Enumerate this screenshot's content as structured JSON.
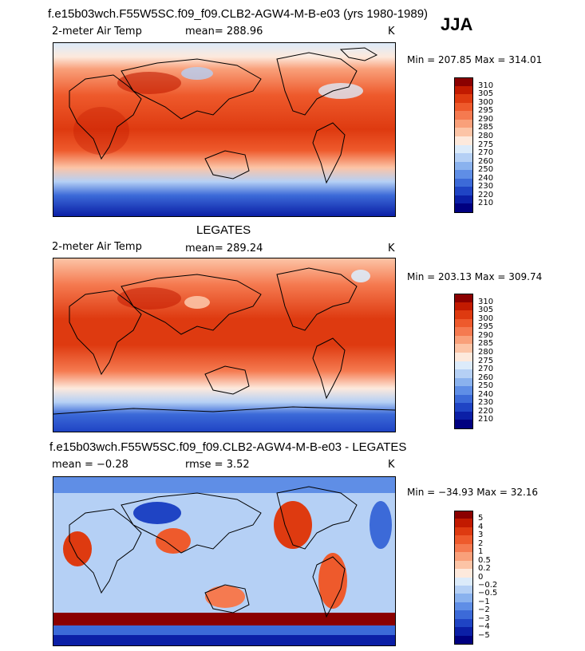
{
  "header": {
    "title": "f.e15b03wch.F55W5SC.f09_f09.CLB2-AGW4-M-B-e03 (yrs 1980-1989)",
    "season": "JJA"
  },
  "panels": [
    {
      "title": "",
      "variable": "2-meter Air Temp",
      "stats": "mean= 288.96",
      "units": "K",
      "minmax": "Min = 207.85 Max = 314.01",
      "kind": "abs"
    },
    {
      "title": "LEGATES",
      "variable": "2-meter Air Temp",
      "stats": "mean= 289.24",
      "units": "K",
      "minmax": "Min = 203.13 Max = 309.74",
      "kind": "abs"
    },
    {
      "title": "f.e15b03wch.F55W5SC.f09_f09.CLB2-AGW4-M-B-e03 - LEGATES",
      "variable": "mean =  −0.28",
      "stats": "rmse =    3.52",
      "units": "K",
      "minmax": "Min = −34.93 Max =   32.16",
      "kind": "diff"
    }
  ],
  "colorbars": {
    "abs": {
      "labels": [
        "310",
        "305",
        "300",
        "295",
        "290",
        "285",
        "280",
        "275",
        "270",
        "260",
        "250",
        "240",
        "230",
        "220",
        "210"
      ],
      "colors": [
        "#8b0000",
        "#c21a00",
        "#de3a10",
        "#ee5a2c",
        "#f57a50",
        "#f9a07a",
        "#fcc4a6",
        "#fde9dc",
        "#dcebfa",
        "#b5d0f5",
        "#8ab2ee",
        "#5f8ee6",
        "#3c6ad8",
        "#1f44c4",
        "#0b1fa6",
        "#000080"
      ]
    },
    "diff": {
      "labels": [
        "5",
        "4",
        "3",
        "2",
        "1",
        "0.5",
        "0.2",
        "0",
        "−0.2",
        "−0.5",
        "−1",
        "−2",
        "−3",
        "−4",
        "−5"
      ],
      "colors": [
        "#8b0000",
        "#c21a00",
        "#de3a10",
        "#ee5a2c",
        "#f57a50",
        "#f9a07a",
        "#fcc4a6",
        "#fde9dc",
        "#dcebfa",
        "#b5d0f5",
        "#8ab2ee",
        "#5f8ee6",
        "#3c6ad8",
        "#1f44c4",
        "#0b1fa6",
        "#000080"
      ]
    }
  }
}
